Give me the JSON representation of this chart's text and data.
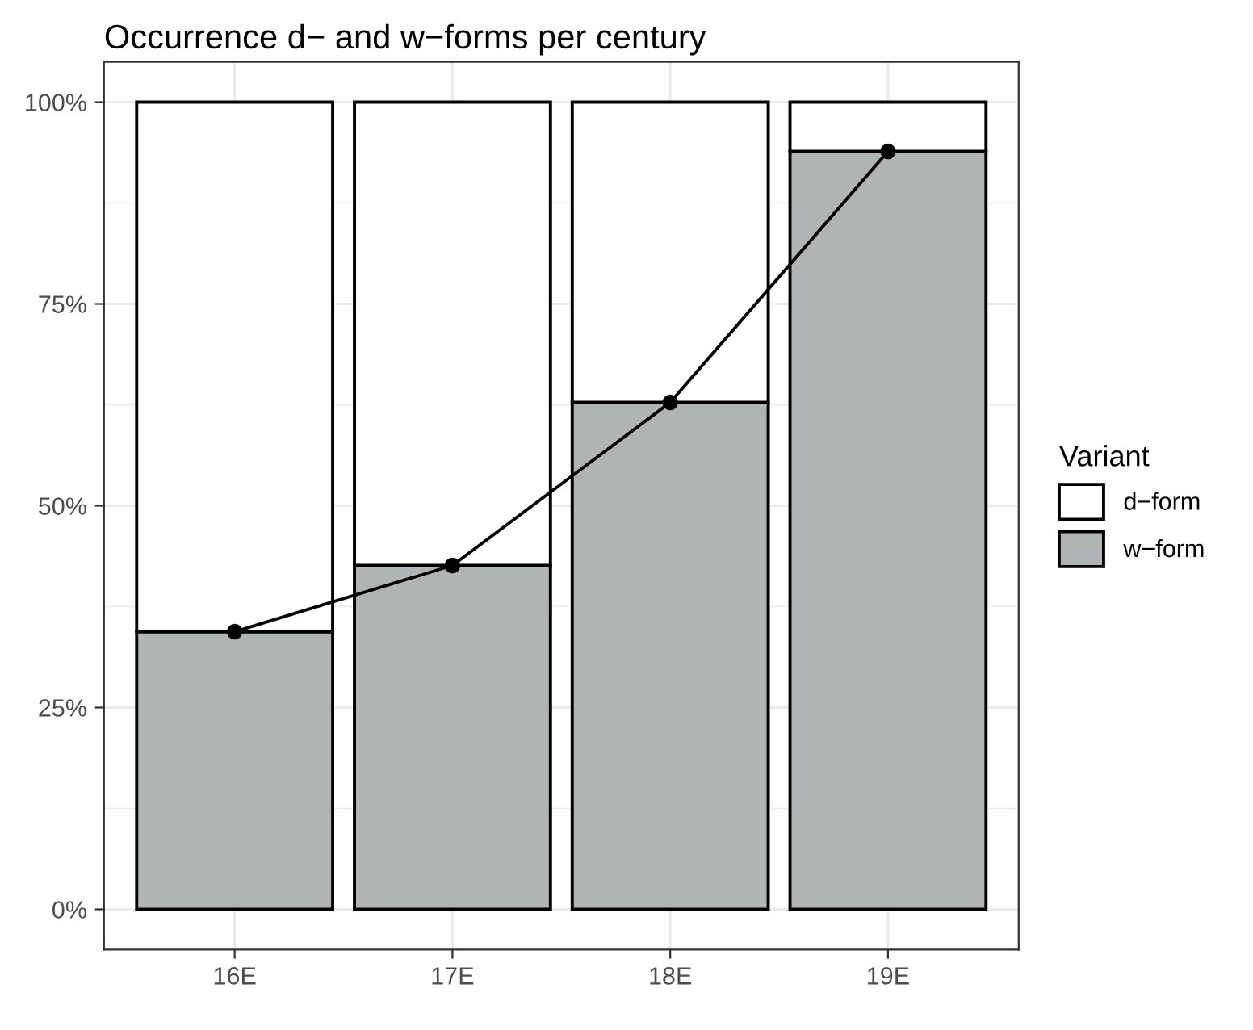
{
  "chart_data": {
    "type": "bar",
    "title": "Occurrence d− and w−forms per century",
    "legend_title": "Variant",
    "categories": [
      "16E",
      "17E",
      "18E",
      "19E"
    ],
    "stacked": true,
    "series": [
      {
        "name": "w−form",
        "color": "#b1b4b5",
        "values": [
          34.4,
          42.6,
          62.8,
          93.9
        ]
      },
      {
        "name": "d−form",
        "color": "#ffffff",
        "values": [
          65.6,
          57.4,
          37.2,
          6.1
        ]
      },
      {
        "type": "line",
        "color": "#000000",
        "marker": "circle",
        "line_style": "solid",
        "values": [
          34.4,
          42.6,
          62.8,
          93.9
        ]
      }
    ],
    "ylim": [
      -5,
      105
    ],
    "yticks": [
      {
        "value": 0,
        "label": "0%"
      },
      {
        "value": 25,
        "label": "25%"
      },
      {
        "value": 50,
        "label": "50%"
      },
      {
        "value": 75,
        "label": "75%"
      },
      {
        "value": 100,
        "label": "100%"
      }
    ],
    "grid": true,
    "legend": "right"
  }
}
